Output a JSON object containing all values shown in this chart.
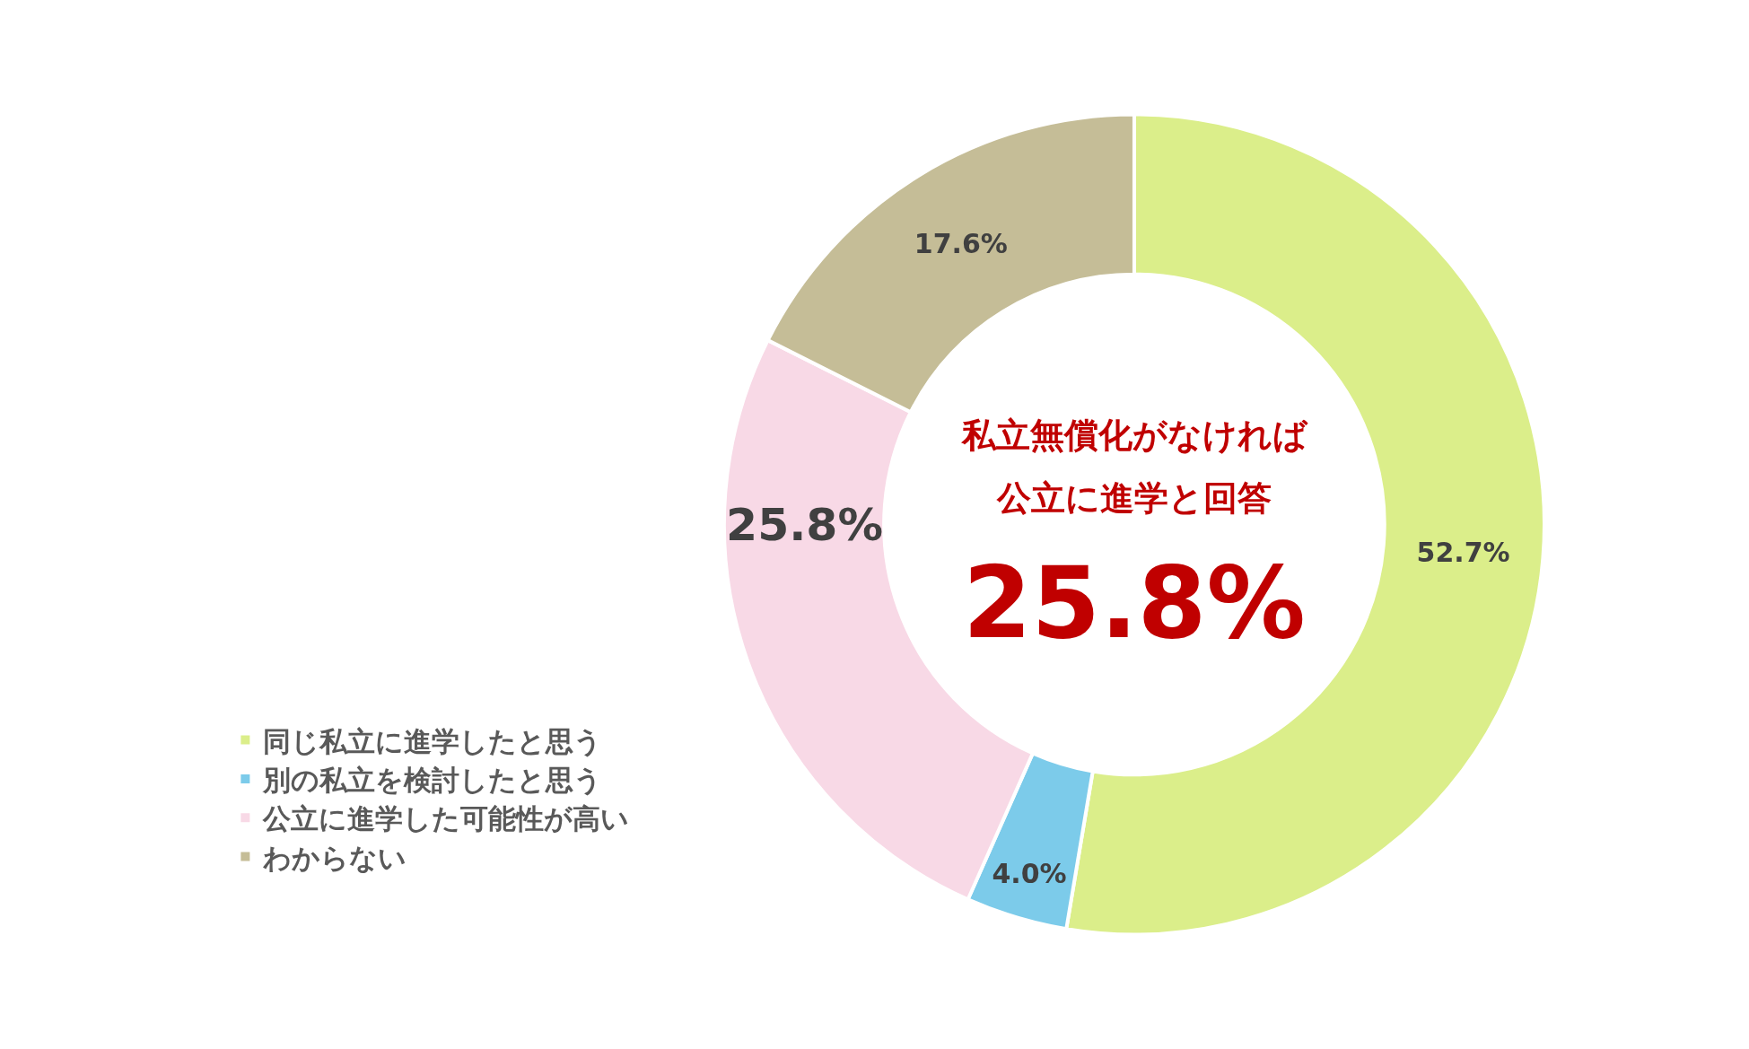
{
  "chart_data": {
    "type": "donut",
    "categories": [
      "同じ私立に進学したと思う",
      "別の私立を検討したと思う",
      "公立に進学した可能性が高い",
      "わからない"
    ],
    "values": [
      52.7,
      4.0,
      25.8,
      17.6
    ],
    "value_labels": [
      "52.7%",
      "4.0%",
      "25.8%",
      "17.6%"
    ],
    "colors": [
      "#dbee8a",
      "#7ccbea",
      "#f8d9e6",
      "#c5bd97"
    ],
    "annotations": [
      "私立無償化がなければ",
      "公立に進学と回答",
      "25.8%"
    ],
    "legend": "left"
  }
}
